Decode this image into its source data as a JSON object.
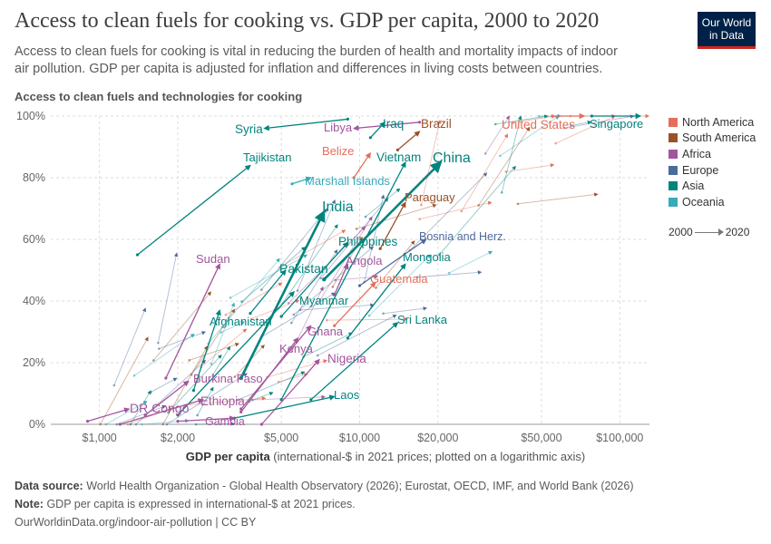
{
  "header": {
    "title": "Access to clean fuels for cooking vs. GDP per capita, 2000 to 2020",
    "subtitle": "Access to clean fuels for cooking is vital in reducing the burden of health and mortality impacts of indoor air pollution. GDP per capita is adjusted for inflation and differences in living costs between countries.",
    "logo_line1": "Our World",
    "logo_line2": "in Data"
  },
  "legend": {
    "items": [
      {
        "label": "North America",
        "color": "#e56e5a"
      },
      {
        "label": "South America",
        "color": "#9a5129"
      },
      {
        "label": "Africa",
        "color": "#a2559c"
      },
      {
        "label": "Europe",
        "color": "#4c6a9c"
      },
      {
        "label": "Asia",
        "color": "#00847e"
      },
      {
        "label": "Oceania",
        "color": "#38aaba"
      }
    ],
    "time_start": "2000",
    "time_end": "2020"
  },
  "footer": {
    "source_label": "Data source:",
    "source_text": "World Health Organization - Global Health Observatory (2026); Eurostat, OECD, IMF, and World Bank (2026)",
    "note_label": "Note:",
    "note_text": "GDP per capita is expressed in international-$ at 2021 prices.",
    "url": "OurWorldinData.org/indoor-air-pollution | CC BY"
  },
  "chart_data": {
    "type": "scatter",
    "title": "Access to clean fuels for cooking vs. GDP per capita, 2000 to 2020",
    "ylabel": "Access to clean fuels and technologies for cooking",
    "xlabel_bold": "GDP per capita",
    "xlabel_rest": " (international-$ in 2021 prices; plotted on a logarithmic axis)",
    "x_scale": "log",
    "xlim": [
      650,
      130000
    ],
    "ylim": [
      0,
      100
    ],
    "x_ticks": [
      {
        "value": 1000,
        "label": "$1,000"
      },
      {
        "value": 2000,
        "label": "$2,000"
      },
      {
        "value": 5000,
        "label": "$5,000"
      },
      {
        "value": 10000,
        "label": "$10,000"
      },
      {
        "value": 20000,
        "label": "$20,000"
      },
      {
        "value": 50000,
        "label": "$50,000"
      },
      {
        "value": 100000,
        "label": "$100,000"
      }
    ],
    "y_ticks": [
      {
        "value": 0,
        "label": "0%"
      },
      {
        "value": 20,
        "label": "20%"
      },
      {
        "value": 40,
        "label": "40%"
      },
      {
        "value": 60,
        "label": "60%"
      },
      {
        "value": 80,
        "label": "80%"
      },
      {
        "value": 100,
        "label": "100%"
      }
    ],
    "grid": true,
    "legend_position": "right",
    "labeled_countries": [
      {
        "name": "Syria",
        "region": "Asia",
        "x0": 9000,
        "y0": 99,
        "x1": 4300,
        "y1": 96
      },
      {
        "name": "Libya",
        "region": "Africa",
        "x0": 17000,
        "y0": 98,
        "x1": 9500,
        "y1": 96
      },
      {
        "name": "Iraq",
        "region": "Asia",
        "x0": 11000,
        "y0": 93,
        "x1": 12500,
        "y1": 98
      },
      {
        "name": "Brazil",
        "region": "South America",
        "x0": 14000,
        "y0": 89,
        "x1": 17000,
        "y1": 95
      },
      {
        "name": "United States",
        "region": "North America",
        "x0": 55000,
        "y0": 100,
        "x1": 73000,
        "y1": 100
      },
      {
        "name": "Singapore",
        "region": "Asia",
        "x0": 78000,
        "y0": 100,
        "x1": 120000,
        "y1": 100
      },
      {
        "name": "Tajikistan",
        "region": "Asia",
        "x0": 1400,
        "y0": 55,
        "x1": 3800,
        "y1": 84
      },
      {
        "name": "Belize",
        "region": "North America",
        "x0": 9500,
        "y0": 80,
        "x1": 11000,
        "y1": 88
      },
      {
        "name": "Vietnam",
        "region": "Asia",
        "x0": 5000,
        "y0": 8,
        "x1": 15000,
        "y1": 85
      },
      {
        "name": "China",
        "region": "Asia",
        "x0": 7300,
        "y0": 47,
        "x1": 20500,
        "y1": 85
      },
      {
        "name": "Marshall Islands",
        "region": "Oceania",
        "x0": 5500,
        "y0": 78,
        "x1": 6500,
        "y1": 80
      },
      {
        "name": "India",
        "region": "Asia",
        "x0": 3500,
        "y0": 15,
        "x1": 7300,
        "y1": 69
      },
      {
        "name": "Paraguay",
        "region": "South America",
        "x0": 12000,
        "y0": 57,
        "x1": 15000,
        "y1": 72
      },
      {
        "name": "Philippines",
        "region": "Asia",
        "x0": 5000,
        "y0": 35,
        "x1": 9000,
        "y1": 59
      },
      {
        "name": "Bosnia and Herz.",
        "region": "Europe",
        "x0": 10000,
        "y0": 45,
        "x1": 18000,
        "y1": 60
      },
      {
        "name": "Sudan",
        "region": "Africa",
        "x0": 1800,
        "y0": 15,
        "x1": 2900,
        "y1": 52
      },
      {
        "name": "Mongolia",
        "region": "Asia",
        "x0": 9000,
        "y0": 28,
        "x1": 15000,
        "y1": 52
      },
      {
        "name": "Pakistan",
        "region": "Asia",
        "x0": 3800,
        "y0": 36,
        "x1": 5200,
        "y1": 50
      },
      {
        "name": "Angola",
        "region": "Africa",
        "x0": 8000,
        "y0": 42,
        "x1": 9000,
        "y1": 52
      },
      {
        "name": "Guatemala",
        "region": "North America",
        "x0": 8000,
        "y0": 32,
        "x1": 11500,
        "y1": 46
      },
      {
        "name": "Myanmar",
        "region": "Asia",
        "x0": 2000,
        "y0": 3,
        "x1": 5600,
        "y1": 43
      },
      {
        "name": "Afghanistan",
        "region": "Asia",
        "x0": 2300,
        "y0": 11,
        "x1": 2900,
        "y1": 37
      },
      {
        "name": "Sri Lanka",
        "region": "Asia",
        "x0": 6500,
        "y0": 8,
        "x1": 14000,
        "y1": 33
      },
      {
        "name": "Ghana",
        "region": "Africa",
        "x0": 3500,
        "y0": 5,
        "x1": 6500,
        "y1": 32
      },
      {
        "name": "Kenya",
        "region": "Africa",
        "x0": 3500,
        "y0": 4,
        "x1": 5800,
        "y1": 28
      },
      {
        "name": "Nigeria",
        "region": "Africa",
        "x0": 4200,
        "y0": 0,
        "x1": 7000,
        "y1": 21
      },
      {
        "name": "Burkina Faso",
        "region": "Africa",
        "x0": 1500,
        "y0": 3,
        "x1": 2200,
        "y1": 14
      },
      {
        "name": "Laos",
        "region": "Asia",
        "x0": 3300,
        "y0": 2,
        "x1": 8000,
        "y1": 9
      },
      {
        "name": "DR Congo",
        "region": "Africa",
        "x0": 900,
        "y0": 1,
        "x1": 1300,
        "y1": 5
      },
      {
        "name": "Ethiopia",
        "region": "Africa",
        "x0": 1200,
        "y0": 0,
        "x1": 2500,
        "y1": 8
      },
      {
        "name": "Gambia",
        "region": "Africa",
        "x0": 2000,
        "y0": 1,
        "x1": 3300,
        "y1": 2
      }
    ]
  }
}
